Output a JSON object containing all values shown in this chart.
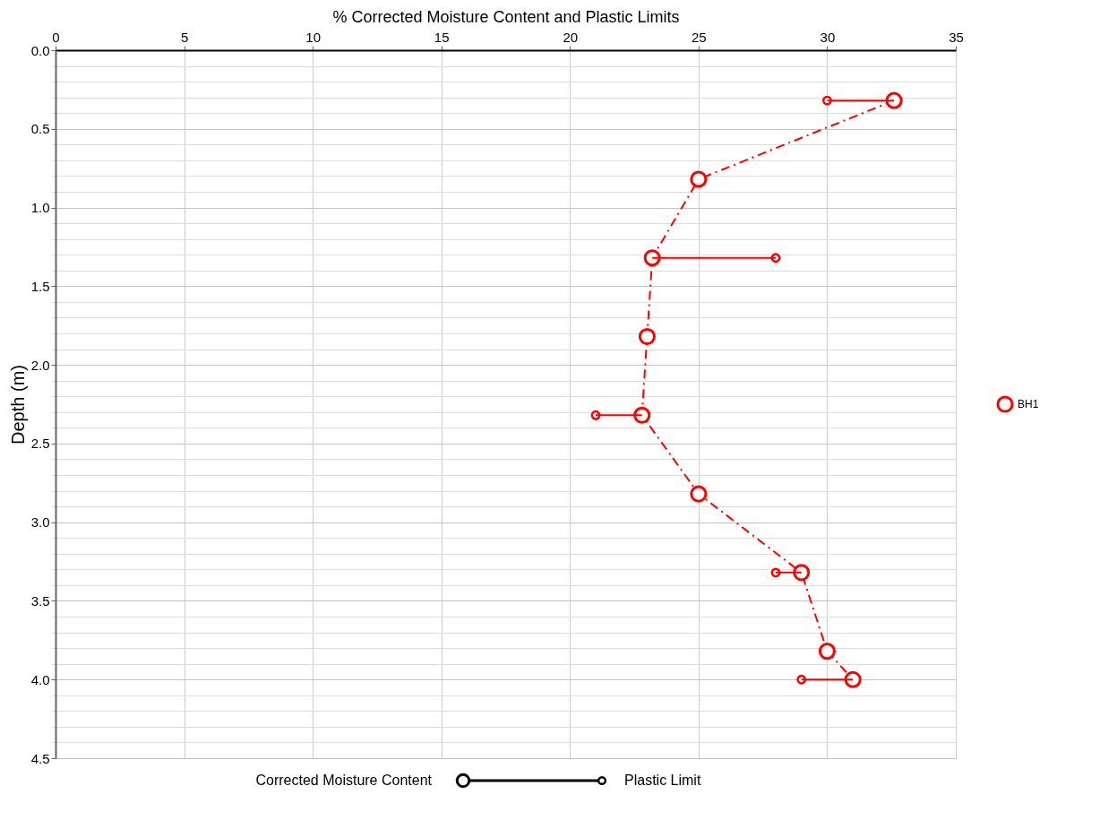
{
  "chart_data": {
    "type": "line",
    "xlabel": "% Corrected Moisture Content and Plastic Limits",
    "ylabel": "Depth (m)",
    "xlim": [
      0,
      35
    ],
    "xticks": [
      0,
      5,
      10,
      15,
      20,
      25,
      30,
      35
    ],
    "ylim": [
      4.5,
      0
    ],
    "yticks": [
      {
        "value": 0,
        "label": "0.0"
      },
      {
        "value": 0.1,
        "label": null
      },
      {
        "value": 0.2,
        "label": null
      },
      {
        "value": 0.3,
        "label": null
      },
      {
        "value": 0.4,
        "label": null
      },
      {
        "value": 0.5,
        "label": "0.5"
      },
      {
        "value": 0.6,
        "label": null
      },
      {
        "value": 0.7,
        "label": null
      },
      {
        "value": 0.8,
        "label": null
      },
      {
        "value": 0.9,
        "label": null
      },
      {
        "value": 1,
        "label": "1.0"
      },
      {
        "value": 1.1,
        "label": null
      },
      {
        "value": 1.2,
        "label": null
      },
      {
        "value": 1.3,
        "label": null
      },
      {
        "value": 1.4,
        "label": null
      },
      {
        "value": 1.5,
        "label": "1.5"
      },
      {
        "value": 1.6,
        "label": null
      },
      {
        "value": 1.7,
        "label": null
      },
      {
        "value": 1.8,
        "label": null
      },
      {
        "value": 1.9,
        "label": null
      },
      {
        "value": 2,
        "label": "2.0"
      },
      {
        "value": 2.1,
        "label": null
      },
      {
        "value": 2.2,
        "label": null
      },
      {
        "value": 2.3,
        "label": null
      },
      {
        "value": 2.4,
        "label": null
      },
      {
        "value": 2.5,
        "label": "2.5"
      },
      {
        "value": 2.6,
        "label": null
      },
      {
        "value": 2.7,
        "label": null
      },
      {
        "value": 2.8,
        "label": null
      },
      {
        "value": 2.9,
        "label": null
      },
      {
        "value": 3,
        "label": "3.0"
      },
      {
        "value": 3.1,
        "label": null
      },
      {
        "value": 3.2,
        "label": null
      },
      {
        "value": 3.3,
        "label": null
      },
      {
        "value": 3.4,
        "label": null
      },
      {
        "value": 3.5,
        "label": "3.5"
      },
      {
        "value": 3.6,
        "label": null
      },
      {
        "value": 3.7,
        "label": null
      },
      {
        "value": 3.8,
        "label": null
      },
      {
        "value": 3.9,
        "label": null
      },
      {
        "value": 4,
        "label": "4.0"
      },
      {
        "value": 4.1,
        "label": null
      },
      {
        "value": 4.2,
        "label": null
      },
      {
        "value": 4.3,
        "label": null
      },
      {
        "value": 4.4,
        "label": null
      },
      {
        "value": 4.5,
        "label": "4.5"
      }
    ],
    "grid": true,
    "legend": "right",
    "marker": "circle",
    "series": [
      {
        "name": "BH1",
        "line_style": "dashed",
        "color": "#ff0000",
        "x": [
          32.6,
          25.0,
          23.2,
          23.0,
          22.8,
          25.0,
          29.0,
          30.0,
          31.0
        ],
        "values": [
          0.32,
          0.82,
          1.32,
          1.82,
          2.32,
          2.82,
          3.32,
          3.82,
          4.0
        ]
      },
      {
        "type": "scatter",
        "color": "#ff0000",
        "x": [
          30.0,
          28.0,
          21.0,
          28.0,
          29.0
        ],
        "values": [
          0.32,
          1.32,
          2.32,
          3.32,
          4.0
        ]
      },
      {
        "line_style": "solid",
        "marker": "none",
        "color": "#ff0000",
        "x": [
          30.0,
          32.6,
          null,
          28.0,
          23.2,
          null,
          21.0,
          22.8,
          null,
          28.0,
          29.0,
          null,
          29.0,
          31.0
        ],
        "values": [
          0.32,
          0.32,
          null,
          1.32,
          1.32,
          null,
          2.32,
          2.32,
          null,
          3.32,
          3.32,
          null,
          4.0,
          4.0
        ]
      }
    ],
    "annotations": [
      "Corrected Moisture Content",
      "Plastic Limit"
    ]
  }
}
